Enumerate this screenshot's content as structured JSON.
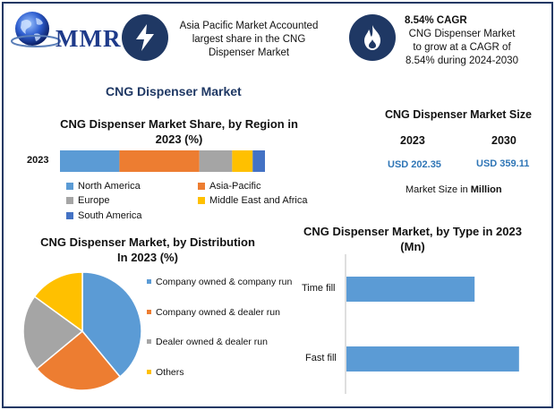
{
  "brand": {
    "logo_text": "MMR"
  },
  "highlights": [
    {
      "icon": "lightning-bolt-icon",
      "title": "",
      "text": "Asia Pacific Market Accounted largest share in the CNG Dispenser Market"
    },
    {
      "icon": "flame-icon",
      "title": "8.54% CAGR",
      "text": "CNG Dispenser Market to grow at a CAGR of 8.54% during 2024-2030"
    }
  ],
  "main_title": "CNG Dispenser Market",
  "colors": {
    "blue": "#5b9bd5",
    "orange": "#ed7d31",
    "gray": "#a5a5a5",
    "yellow": "#ffc000",
    "darkblue": "#4472c4",
    "navy": "#1f3864"
  },
  "market_size": {
    "title": "CNG Dispenser Market Size",
    "year_a": "2023",
    "year_b": "2030",
    "value_a": "USD 202.35",
    "value_b": "USD 359.11",
    "note_prefix": "Market Size in ",
    "note_unit": "Million"
  },
  "chart_data": [
    {
      "type": "bar",
      "orientation": "horizontal-stacked",
      "title": "CNG Dispenser Market Share, by Region in 2023 (%)",
      "categories": [
        "2023"
      ],
      "series": [
        {
          "name": "North America",
          "values": [
            29
          ],
          "color": "#5b9bd5"
        },
        {
          "name": "Asia-Pacific",
          "values": [
            39
          ],
          "color": "#ed7d31"
        },
        {
          "name": "Europe",
          "values": [
            16
          ],
          "color": "#a5a5a5"
        },
        {
          "name": "Middle East and Africa",
          "values": [
            10
          ],
          "color": "#ffc000"
        },
        {
          "name": "South America",
          "values": [
            6
          ],
          "color": "#4472c4"
        }
      ],
      "xlim": [
        0,
        100
      ],
      "legend_position": "bottom"
    },
    {
      "type": "pie",
      "title": "CNG Dispenser Market, by Distribution In 2023 (%)",
      "labels": [
        "Company owned & company run",
        "Company owned & dealer run",
        "Dealer owned & dealer run",
        "Others"
      ],
      "values": [
        39,
        25,
        21,
        15
      ],
      "colors": [
        "#5b9bd5",
        "#ed7d31",
        "#a5a5a5",
        "#ffc000"
      ],
      "legend_position": "right"
    },
    {
      "type": "bar",
      "orientation": "horizontal",
      "title": "CNG Dispenser Market, by Type in 2023 (Mn)",
      "categories": [
        "Time fill",
        "Fast fill"
      ],
      "values": [
        75,
        101
      ],
      "color": "#5b9bd5",
      "xlim": [
        0,
        110
      ]
    }
  ]
}
